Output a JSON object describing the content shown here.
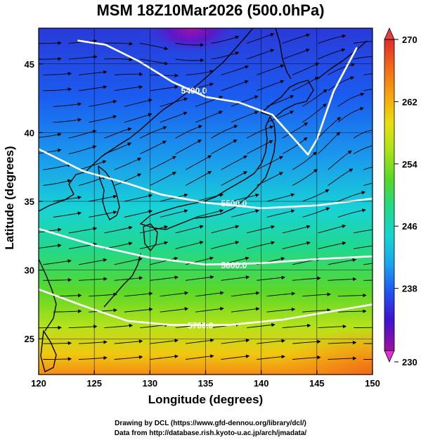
{
  "title": "MSM 18Z10Mar2026 (500.0hPa)",
  "xlabel": "Longitude (degrees)",
  "ylabel": "Latitude  (degrees)",
  "credits": [
    "Drawing by DCL (https://www.gfd-dennou.org/library/dcl/)",
    "Data from http://database.rish.kyoto-u.ac.jp/arch/jmadata/"
  ],
  "chart_data": {
    "type": "heatmap",
    "xlim": [
      120,
      150
    ],
    "ylim": [
      22.4,
      47.6
    ],
    "x_ticks": [
      "120",
      "125",
      "130",
      "135",
      "140",
      "145",
      "150"
    ],
    "y_ticks": [
      "25",
      "30",
      "35",
      "40",
      "45"
    ],
    "colorbar": {
      "min": 230,
      "max": 270,
      "tick_labels": [
        "270",
        "262",
        "254",
        "246",
        "238",
        "230"
      ],
      "colors": [
        "#a010a0",
        "#3f12d0",
        "#1f56f0",
        "#1aa6ee",
        "#18d4d0",
        "#22d88a",
        "#56d826",
        "#a8e21a",
        "#e8e010",
        "#f6a410",
        "#f26a18",
        "#e02a28"
      ]
    },
    "contours": [
      {
        "label": "5400.0",
        "points": [
          [
            123.5,
            46.7
          ],
          [
            126,
            46.4
          ],
          [
            129,
            45.2
          ],
          [
            132,
            43.7
          ],
          [
            135,
            42.6
          ],
          [
            138,
            42.2
          ],
          [
            141,
            41.3
          ],
          [
            143,
            39.5
          ],
          [
            144.2,
            38.4
          ],
          [
            145,
            39.5
          ],
          [
            146.5,
            43
          ],
          [
            148.6,
            46.2
          ]
        ]
      },
      {
        "label": "5500.0",
        "points": [
          [
            120,
            38.8
          ],
          [
            124,
            37.2
          ],
          [
            128,
            36.3
          ],
          [
            131,
            35.5
          ],
          [
            135,
            34.9
          ],
          [
            140,
            34.5
          ],
          [
            145,
            34.7
          ],
          [
            150,
            35.2
          ]
        ]
      },
      {
        "label": "5600.0",
        "points": [
          [
            120,
            33.0
          ],
          [
            125,
            31.8
          ],
          [
            130,
            30.9
          ],
          [
            135,
            30.4
          ],
          [
            140,
            30.5
          ],
          [
            145,
            30.8
          ],
          [
            150,
            31.0
          ]
        ]
      },
      {
        "label": "5700.0",
        "points": [
          [
            120,
            28.6
          ],
          [
            124,
            27.4
          ],
          [
            128,
            26.3
          ],
          [
            132,
            26.0
          ],
          [
            137,
            26.0
          ],
          [
            142,
            26.4
          ],
          [
            150,
            27.5
          ]
        ]
      }
    ]
  }
}
